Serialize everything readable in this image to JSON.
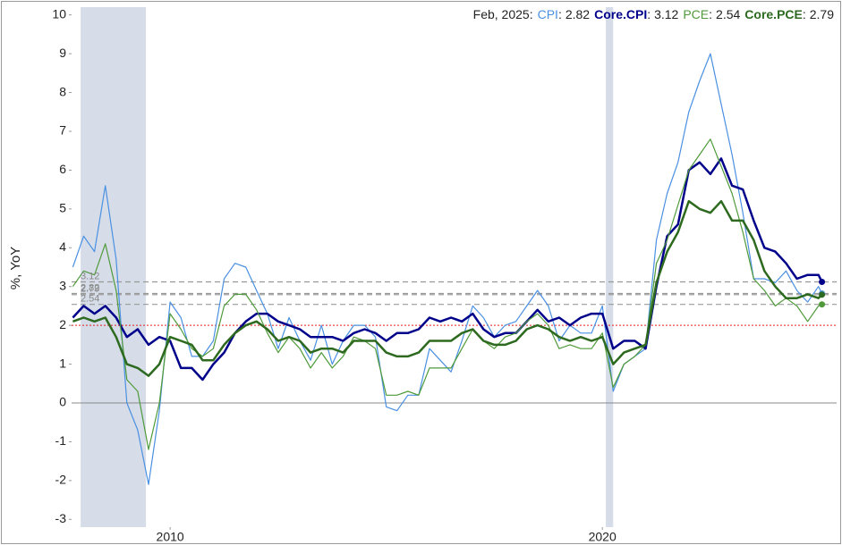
{
  "chart_data": {
    "type": "line",
    "y_label": "%, YoY",
    "legend_date": "Feb, 2025:",
    "legend_separator": ":",
    "xlim": [
      2007.72,
      2025.42
    ],
    "ylim": [
      -3.2,
      10.2
    ],
    "xticks": [
      2010,
      2020
    ],
    "yticks": [
      -3,
      -2,
      -1,
      0,
      1,
      2,
      3,
      4,
      5,
      6,
      7,
      8,
      9,
      10
    ],
    "shaded": [
      [
        2007.93,
        2009.44
      ],
      [
        2020.08,
        2020.25
      ]
    ],
    "target_line": 2,
    "target_color": "#e02020",
    "x": [
      2007.75,
      2008.0,
      2008.25,
      2008.5,
      2008.75,
      2009.0,
      2009.25,
      2009.5,
      2009.75,
      2010.0,
      2010.25,
      2010.5,
      2010.75,
      2011.0,
      2011.25,
      2011.5,
      2011.75,
      2012.0,
      2012.25,
      2012.5,
      2012.75,
      2013.0,
      2013.25,
      2013.5,
      2013.75,
      2014.0,
      2014.25,
      2014.5,
      2014.75,
      2015.0,
      2015.25,
      2015.5,
      2015.75,
      2016.0,
      2016.25,
      2016.5,
      2016.75,
      2017.0,
      2017.25,
      2017.5,
      2017.75,
      2018.0,
      2018.25,
      2018.5,
      2018.75,
      2019.0,
      2019.25,
      2019.5,
      2019.75,
      2020.0,
      2020.25,
      2020.5,
      2020.75,
      2021.0,
      2021.25,
      2021.5,
      2021.75,
      2022.0,
      2022.25,
      2022.5,
      2022.75,
      2023.0,
      2023.25,
      2023.5,
      2023.75,
      2024.0,
      2024.25,
      2024.5,
      2024.75,
      2025.0,
      2025.08
    ],
    "series": [
      {
        "name": "CPI",
        "color": "#4a90e2",
        "line_width": 1.2,
        "values": [
          3.5,
          4.3,
          3.9,
          5.6,
          3.7,
          0.0,
          -0.7,
          -2.1,
          -0.2,
          2.6,
          2.2,
          1.2,
          1.2,
          1.6,
          3.2,
          3.6,
          3.5,
          2.9,
          2.3,
          1.4,
          2.2,
          1.6,
          1.1,
          2.0,
          1.0,
          1.6,
          2.0,
          2.0,
          1.7,
          -0.1,
          -0.2,
          0.2,
          0.2,
          1.4,
          1.1,
          0.8,
          1.6,
          2.5,
          2.2,
          1.7,
          2.0,
          2.1,
          2.5,
          2.9,
          2.5,
          1.6,
          2.0,
          1.8,
          1.8,
          2.5,
          0.3,
          1.0,
          1.2,
          1.4,
          4.2,
          5.4,
          6.2,
          7.5,
          8.3,
          9.0,
          7.7,
          6.4,
          4.9,
          3.2,
          3.2,
          3.1,
          3.4,
          2.9,
          2.6,
          3.0,
          2.82
        ]
      },
      {
        "name": "Core.CPI",
        "color": "#00008b",
        "line_width": 2.5,
        "values": [
          2.2,
          2.5,
          2.3,
          2.5,
          2.2,
          1.7,
          1.9,
          1.5,
          1.7,
          1.6,
          0.9,
          0.9,
          0.6,
          1.0,
          1.3,
          1.8,
          2.1,
          2.3,
          2.3,
          2.1,
          2.0,
          1.9,
          1.7,
          1.7,
          1.7,
          1.6,
          1.8,
          1.9,
          1.8,
          1.6,
          1.8,
          1.8,
          1.9,
          2.2,
          2.1,
          2.2,
          2.1,
          2.3,
          1.9,
          1.7,
          1.8,
          1.8,
          2.1,
          2.4,
          2.1,
          2.2,
          2.0,
          2.2,
          2.3,
          2.3,
          1.4,
          1.6,
          1.6,
          1.4,
          3.0,
          4.3,
          4.6,
          6.0,
          6.2,
          5.9,
          6.3,
          5.6,
          5.5,
          4.7,
          4.0,
          3.9,
          3.6,
          3.2,
          3.3,
          3.3,
          3.12
        ]
      },
      {
        "name": "PCE",
        "color": "#4f9a3a",
        "line_width": 1.2,
        "values": [
          3.0,
          3.4,
          3.3,
          4.1,
          2.9,
          0.6,
          0.3,
          -1.2,
          0.0,
          2.3,
          1.9,
          1.4,
          1.2,
          1.4,
          2.5,
          2.8,
          2.8,
          2.4,
          1.8,
          1.3,
          1.7,
          1.4,
          0.9,
          1.3,
          0.9,
          1.2,
          1.7,
          1.6,
          1.4,
          0.2,
          0.2,
          0.3,
          0.2,
          0.9,
          0.9,
          0.9,
          1.4,
          1.9,
          1.6,
          1.4,
          1.7,
          1.8,
          2.1,
          2.3,
          2.0,
          1.4,
          1.5,
          1.4,
          1.4,
          1.8,
          0.4,
          1.0,
          1.2,
          1.5,
          3.6,
          4.2,
          5.1,
          6.0,
          6.4,
          6.8,
          6.1,
          5.4,
          4.4,
          3.2,
          2.9,
          2.5,
          2.7,
          2.5,
          2.1,
          2.5,
          2.54
        ]
      },
      {
        "name": "Core.PCE",
        "color": "#2d6a1f",
        "line_width": 2.5,
        "values": [
          2.1,
          2.2,
          2.1,
          2.2,
          1.7,
          1.0,
          0.9,
          0.7,
          1.0,
          1.7,
          1.6,
          1.5,
          1.1,
          1.1,
          1.5,
          1.8,
          2.0,
          2.1,
          1.9,
          1.6,
          1.7,
          1.6,
          1.3,
          1.4,
          1.4,
          1.3,
          1.6,
          1.6,
          1.6,
          1.3,
          1.2,
          1.2,
          1.3,
          1.6,
          1.6,
          1.6,
          1.8,
          1.9,
          1.6,
          1.5,
          1.5,
          1.6,
          1.9,
          2.0,
          1.9,
          1.7,
          1.6,
          1.7,
          1.6,
          1.7,
          1.0,
          1.3,
          1.4,
          1.5,
          3.1,
          3.9,
          4.4,
          5.2,
          5.0,
          4.9,
          5.2,
          4.7,
          4.7,
          4.2,
          3.4,
          3.0,
          2.7,
          2.7,
          2.8,
          2.7,
          2.79
        ]
      }
    ]
  }
}
